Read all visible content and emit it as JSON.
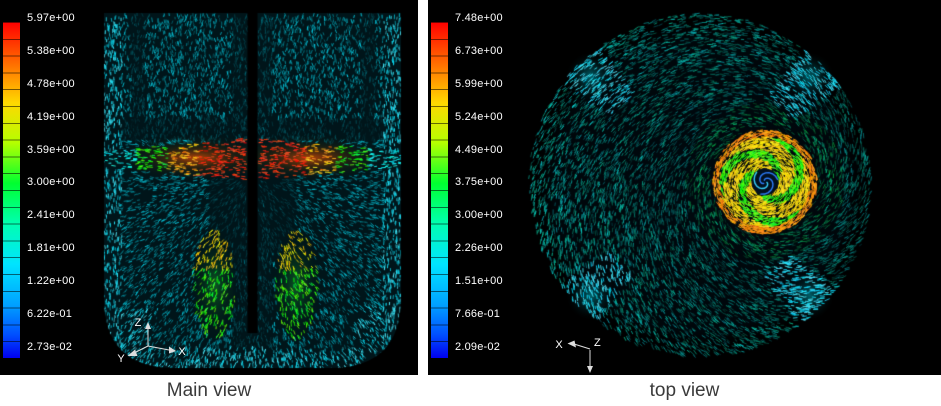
{
  "panels": {
    "main": {
      "caption": "Main view",
      "legend_ticks": [
        "5.97e+00",
        "5.38e+00",
        "4.78e+00",
        "4.19e+00",
        "3.59e+00",
        "3.00e+00",
        "2.41e+00",
        "1.81e+00",
        "1.22e+00",
        "6.22e-01",
        "2.73e-02"
      ],
      "axes": {
        "z": "Z",
        "y": "Y",
        "x": "X"
      }
    },
    "top": {
      "caption": "top view",
      "legend_ticks": [
        "7.48e+00",
        "6.73e+00",
        "5.99e+00",
        "5.24e+00",
        "4.49e+00",
        "3.75e+00",
        "3.00e+00",
        "2.26e+00",
        "1.51e+00",
        "7.66e-01",
        "2.09e-02"
      ],
      "axes": {
        "x": "X",
        "z": "Z"
      }
    }
  },
  "colors": {
    "panel_background": "#000000",
    "page_background": "#ffffff",
    "legend_text": "#ffffff",
    "caption_text": "#3a3a3a",
    "colormap_top": "#ff0000",
    "colormap_bottom": "#0000f0"
  },
  "chart_data": [
    {
      "type": "heatmap",
      "title": "Main view",
      "description": "Velocity vector field of stirred tank, axial (side) cross-section; rainbow colormap of velocity magnitude with impeller jet (red/orange) at mid-height and green plumes below the shaft",
      "colorbar_ticks": [
        5.97,
        5.38,
        4.78,
        4.19,
        3.59,
        3.0,
        2.41,
        1.81,
        1.22,
        0.622,
        0.0273
      ],
      "range": [
        0.0273,
        5.97
      ],
      "colormap": "rainbow (blue min to red max)",
      "legend_position": "left",
      "axes_triad": [
        "Z up",
        "Y",
        "X"
      ]
    },
    {
      "type": "heatmap",
      "title": "top view",
      "description": "Velocity vector field of stirred tank, top (plan) view; circular swirl with yellow/green impeller disk, blue spiral core, cyan baffle streaks at four diagonal rim positions",
      "colorbar_ticks": [
        7.48,
        6.73,
        5.99,
        5.24,
        4.49,
        3.75,
        3.0,
        2.26,
        1.51,
        0.766,
        0.0209
      ],
      "range": [
        0.0209,
        7.48
      ],
      "colormap": "rainbow (blue min to red max)",
      "legend_position": "left",
      "axes_triad": [
        "X",
        "Z down"
      ]
    }
  ]
}
